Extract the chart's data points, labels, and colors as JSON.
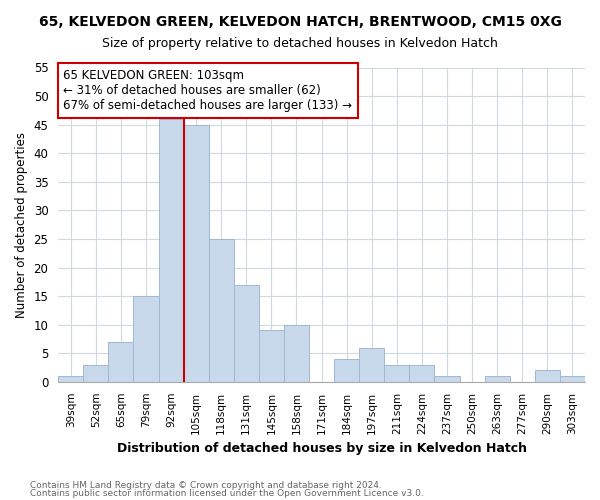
{
  "title": "65, KELVEDON GREEN, KELVEDON HATCH, BRENTWOOD, CM15 0XG",
  "subtitle": "Size of property relative to detached houses in Kelvedon Hatch",
  "xlabel": "Distribution of detached houses by size in Kelvedon Hatch",
  "ylabel": "Number of detached properties",
  "bar_labels": [
    "39sqm",
    "52sqm",
    "65sqm",
    "79sqm",
    "92sqm",
    "105sqm",
    "118sqm",
    "131sqm",
    "145sqm",
    "158sqm",
    "171sqm",
    "184sqm",
    "197sqm",
    "211sqm",
    "224sqm",
    "237sqm",
    "250sqm",
    "263sqm",
    "277sqm",
    "290sqm",
    "303sqm"
  ],
  "bar_values": [
    1,
    3,
    7,
    15,
    46,
    45,
    25,
    17,
    9,
    10,
    0,
    4,
    6,
    3,
    3,
    1,
    0,
    1,
    0,
    2,
    1
  ],
  "bar_color": "#c8d9eb",
  "bar_edge_color": "#a0b8d0",
  "vline_index": 4.5,
  "vline_color": "#cc0000",
  "ylim": [
    0,
    55
  ],
  "yticks": [
    0,
    5,
    10,
    15,
    20,
    25,
    30,
    35,
    40,
    45,
    50,
    55
  ],
  "annotation_line1": "65 KELVEDON GREEN: 103sqm",
  "annotation_line2": "← 31% of detached houses are smaller (62)",
  "annotation_line3": "67% of semi-detached houses are larger (133) →",
  "annotation_box_color": "#ffffff",
  "annotation_box_edge": "#cc0000",
  "footer1": "Contains HM Land Registry data © Crown copyright and database right 2024.",
  "footer2": "Contains public sector information licensed under the Open Government Licence v3.0.",
  "background_color": "#ffffff",
  "plot_background": "#ffffff",
  "grid_color": "#d0d8e0"
}
